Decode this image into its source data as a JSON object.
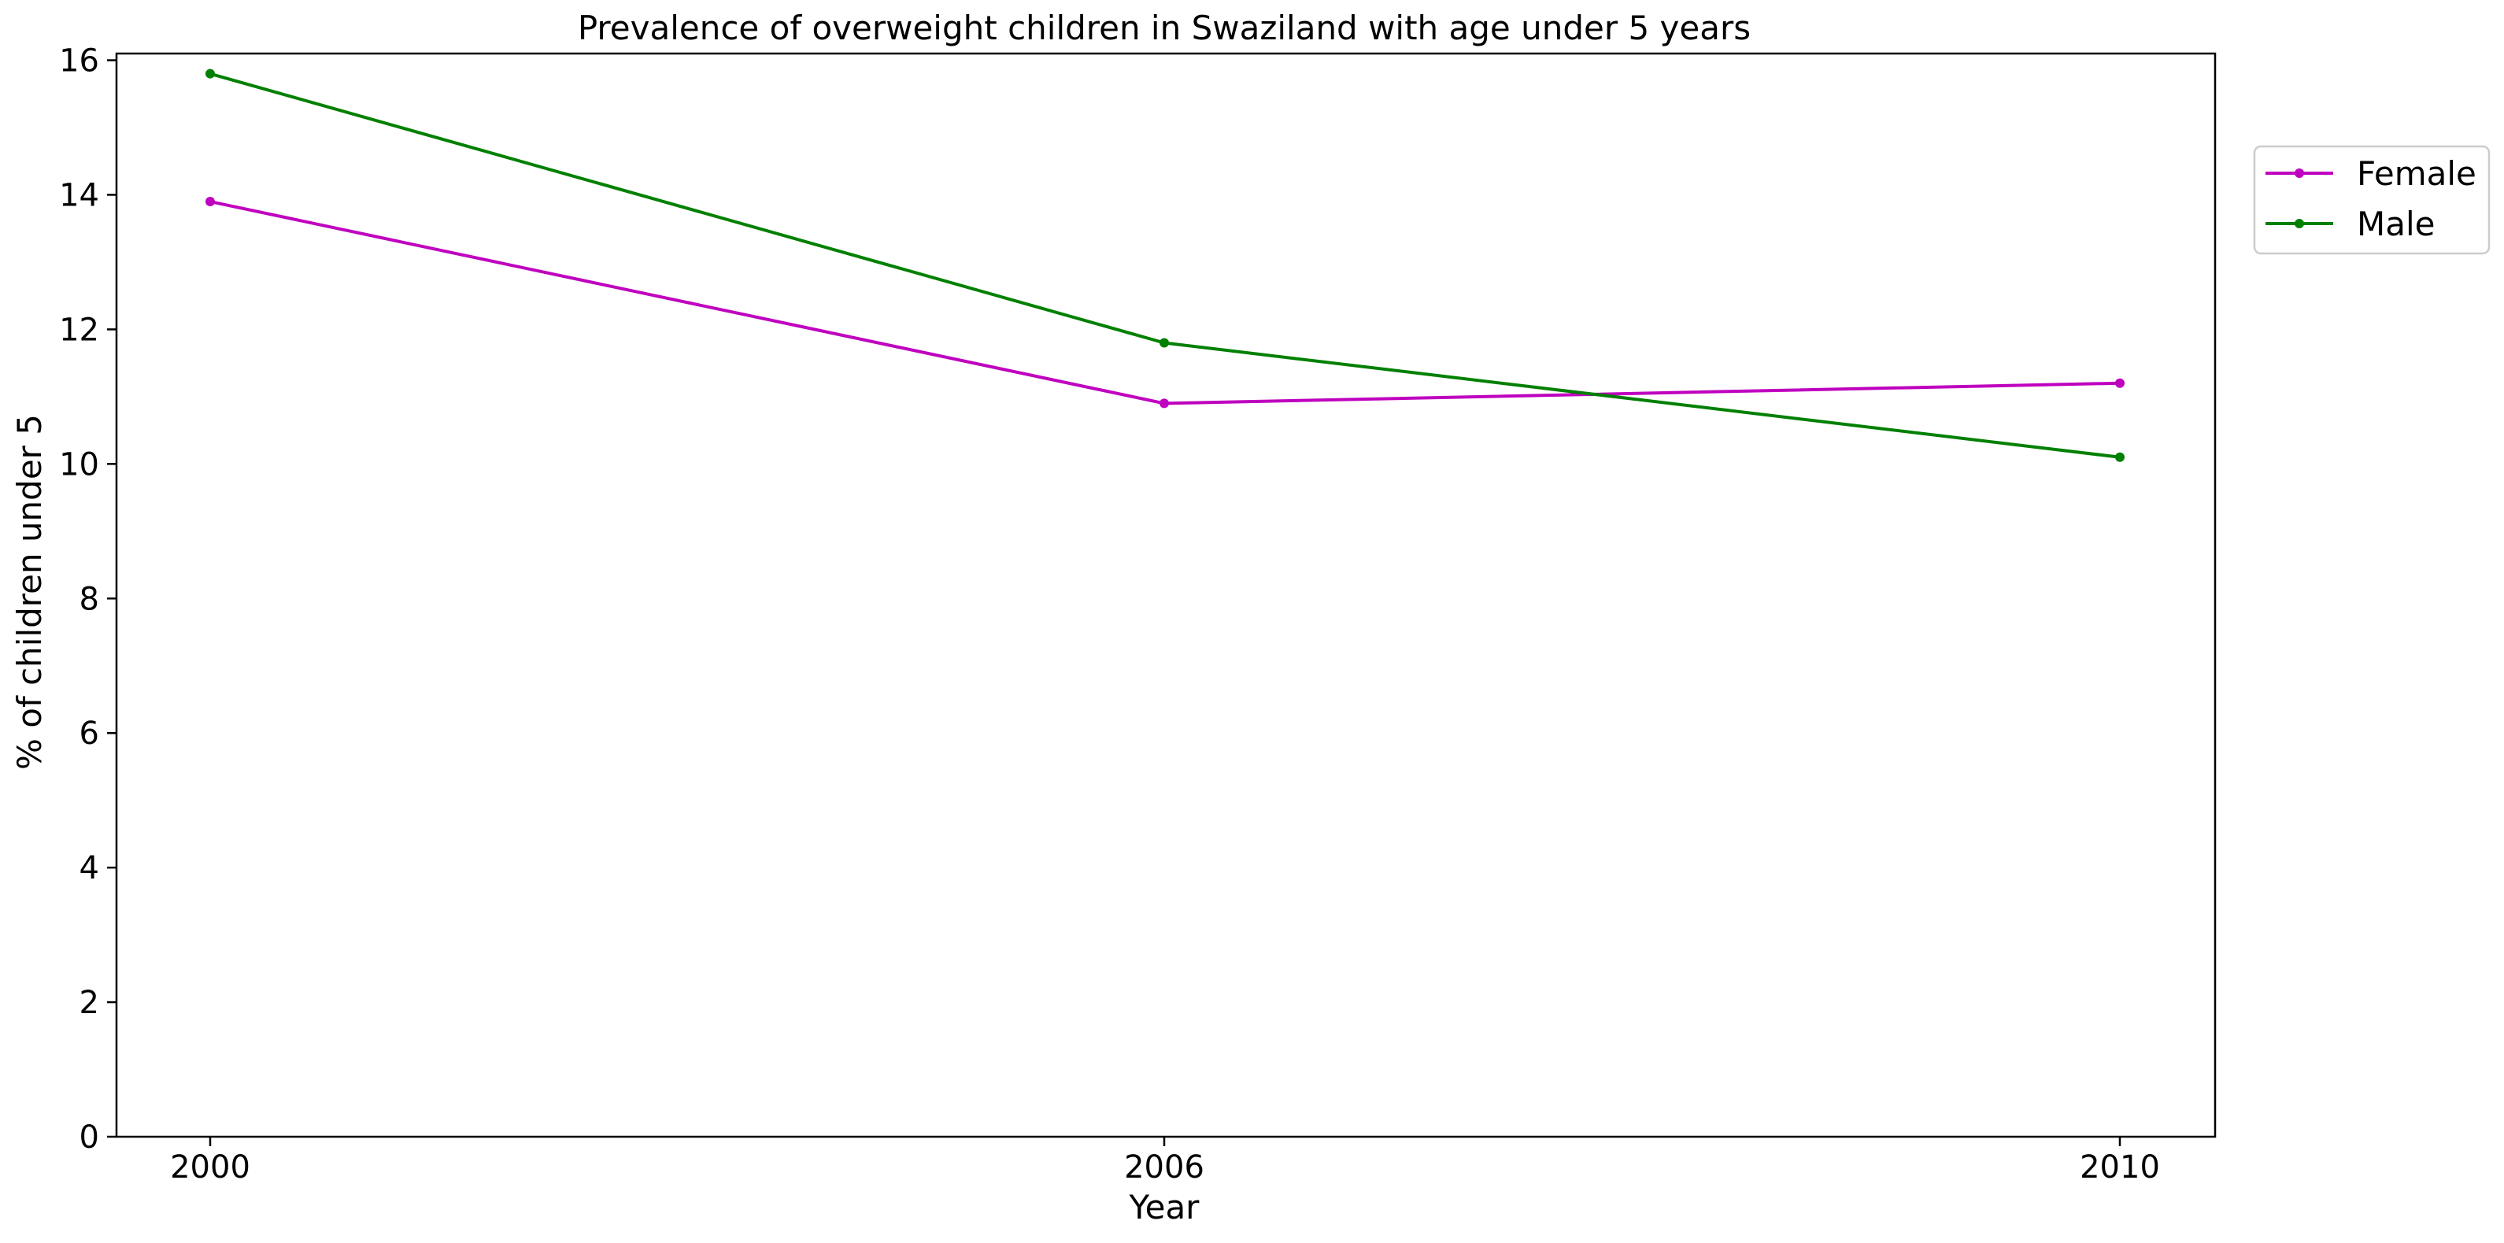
{
  "chart_data": {
    "type": "line",
    "title": "Prevalence of overweight children in Swaziland with age under 5 years",
    "xlabel": "Year",
    "ylabel": "% of children under 5",
    "categories": [
      "2000",
      "2006",
      "2010"
    ],
    "y_ticks": [
      0,
      2,
      4,
      6,
      8,
      10,
      12,
      14,
      16
    ],
    "ylim": [
      0,
      16.1
    ],
    "grid": false,
    "legend_position": "top-right, outside plot area",
    "series": [
      {
        "name": "Female",
        "color": "#bf00bf",
        "values": [
          13.9,
          10.9,
          11.2
        ]
      },
      {
        "name": "Male",
        "color": "#008000",
        "values": [
          15.8,
          11.8,
          10.1
        ]
      }
    ]
  }
}
